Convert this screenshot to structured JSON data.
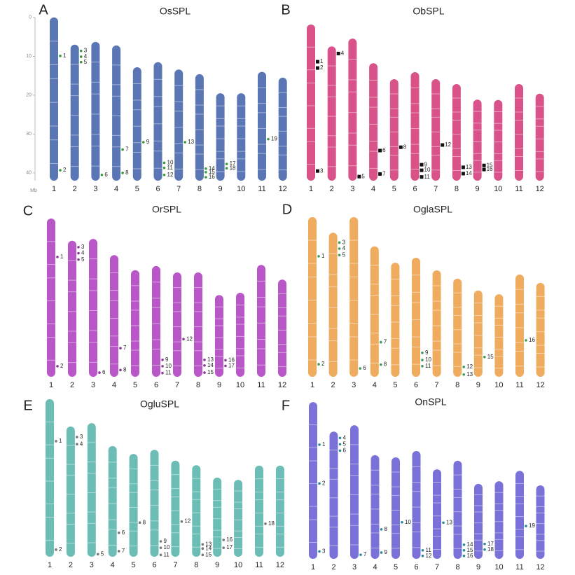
{
  "panels": [
    {
      "letter": "A",
      "title": "OsSPL",
      "color": "#5a76b5",
      "marker_color": "#3a9a3a",
      "marker": "dot",
      "axis": {
        "ticks": [
          0,
          10,
          20,
          30,
          40
        ],
        "unit": "Mb"
      },
      "chromosomes": [
        {
          "label": "1",
          "length": 42,
          "genes": [
            {
              "label": "1",
              "position": 9.9
            },
            {
              "label": "2",
              "position": 39.3
            }
          ]
        },
        {
          "label": "2",
          "length": 35,
          "genes": [
            {
              "label": "3",
              "position": 1.6
            },
            {
              "label": "4",
              "position": 3.1
            },
            {
              "label": "5",
              "position": 4.5
            }
          ]
        },
        {
          "label": "3",
          "length": 35.7,
          "genes": [
            {
              "label": "6",
              "position": 34.2
            }
          ]
        },
        {
          "label": "4",
          "length": 34.8,
          "genes": [
            {
              "label": "7",
              "position": 26.8
            },
            {
              "label": "8",
              "position": 32.8
            }
          ]
        },
        {
          "label": "5",
          "length": 29.2,
          "genes": [
            {
              "label": "9",
              "position": 19.3
            }
          ]
        },
        {
          "label": "6",
          "length": 30.5,
          "genes": [
            {
              "label": "10",
              "position": 25.9
            },
            {
              "label": "11",
              "position": 27.2
            },
            {
              "label": "12",
              "position": 29
            }
          ]
        },
        {
          "label": "7",
          "length": 28.6,
          "genes": [
            {
              "label": "13",
              "position": 18.7
            }
          ]
        },
        {
          "label": "8",
          "length": 27.4,
          "genes": [
            {
              "label": "14",
              "position": 24.3
            },
            {
              "label": "15",
              "position": 25.2
            },
            {
              "label": "16",
              "position": 26.5
            }
          ]
        },
        {
          "label": "9",
          "length": 22.5,
          "genes": [
            {
              "label": "17",
              "position": 18.2
            },
            {
              "label": "18",
              "position": 19.3
            }
          ]
        },
        {
          "label": "10",
          "length": 22.5,
          "genes": []
        },
        {
          "label": "11",
          "length": 28,
          "genes": [
            {
              "label": "19",
              "position": 17.3
            }
          ]
        },
        {
          "label": "12",
          "length": 26.5,
          "genes": []
        }
      ]
    },
    {
      "letter": "B",
      "title": "ObSPL",
      "color": "#d9538a",
      "marker_color": "#111111",
      "marker": "square",
      "chromosomes": [
        {
          "label": "1",
          "length": 42,
          "genes": [
            {
              "label": "1",
              "position": 10
            },
            {
              "label": "2",
              "position": 11.7
            },
            {
              "label": "3",
              "position": 39.4
            }
          ]
        },
        {
          "label": "2",
          "length": 36.1,
          "genes": [
            {
              "label": "4",
              "position": 1.9
            }
          ]
        },
        {
          "label": "3",
          "length": 38.2,
          "genes": [
            {
              "label": "5",
              "position": 37.1
            }
          ]
        },
        {
          "label": "4",
          "length": 31.6,
          "genes": [
            {
              "label": "6",
              "position": 23.5
            },
            {
              "label": "7",
              "position": 29.8
            }
          ]
        },
        {
          "label": "5",
          "length": 27.3,
          "genes": [
            {
              "label": "8",
              "position": 18.3
            }
          ]
        },
        {
          "label": "6",
          "length": 29.2,
          "genes": [
            {
              "label": "9",
              "position": 24.9
            },
            {
              "label": "10",
              "position": 26.4
            },
            {
              "label": "11",
              "position": 28.2
            }
          ]
        },
        {
          "label": "7",
          "length": 27.3,
          "genes": [
            {
              "label": "12",
              "position": 17.7
            }
          ]
        },
        {
          "label": "8",
          "length": 26,
          "genes": [
            {
              "label": "13",
              "position": 22.4
            },
            {
              "label": "14",
              "position": 24.1
            }
          ]
        },
        {
          "label": "9",
          "length": 21.8,
          "genes": [
            {
              "label": "15",
              "position": 17.7
            },
            {
              "label": "16",
              "position": 18.8
            }
          ]
        },
        {
          "label": "10",
          "length": 21.7,
          "genes": []
        },
        {
          "label": "11",
          "length": 26,
          "genes": []
        },
        {
          "label": "12",
          "length": 23.4,
          "genes": []
        }
      ]
    },
    {
      "letter": "C",
      "title": "OrSPL",
      "color": "#b957c8",
      "marker_color": "#8a3a96",
      "marker": "dot",
      "chromosomes": [
        {
          "label": "1",
          "length": 42,
          "genes": [
            {
              "label": "1",
              "position": 10.2
            },
            {
              "label": "2",
              "position": 39.2
            }
          ]
        },
        {
          "label": "2",
          "length": 36.1,
          "genes": [
            {
              "label": "3",
              "position": 1.7
            },
            {
              "label": "4",
              "position": 3.3
            },
            {
              "label": "5",
              "position": 5
            }
          ]
        },
        {
          "label": "3",
          "length": 36.6,
          "genes": [
            {
              "label": "6",
              "position": 35.5
            }
          ]
        },
        {
          "label": "4",
          "length": 32.3,
          "genes": [
            {
              "label": "7",
              "position": 24.7
            },
            {
              "label": "8",
              "position": 30.5
            }
          ]
        },
        {
          "label": "5",
          "length": 28.3,
          "genes": []
        },
        {
          "label": "6",
          "length": 29.4,
          "genes": [
            {
              "label": "9",
              "position": 24.9
            },
            {
              "label": "10",
              "position": 26.6
            },
            {
              "label": "11",
              "position": 28.4
            }
          ]
        },
        {
          "label": "7",
          "length": 27.7,
          "genes": [
            {
              "label": "12",
              "position": 17.7
            }
          ]
        },
        {
          "label": "8",
          "length": 27.7,
          "genes": [
            {
              "label": "13",
              "position": 23.2
            },
            {
              "label": "14",
              "position": 24.7
            },
            {
              "label": "15",
              "position": 26.6
            }
          ]
        },
        {
          "label": "9",
          "length": 21.7,
          "genes": [
            {
              "label": "16",
              "position": 17.3
            },
            {
              "label": "17",
              "position": 18.8
            }
          ]
        },
        {
          "label": "10",
          "length": 22.3,
          "genes": []
        },
        {
          "label": "11",
          "length": 29.7,
          "genes": []
        },
        {
          "label": "12",
          "length": 25.8,
          "genes": []
        }
      ]
    },
    {
      "letter": "D",
      "title": "OglaSPL",
      "color": "#f0ac5e",
      "marker_color": "#3a9a5a",
      "marker": "dot",
      "chromosomes": [
        {
          "label": "1",
          "length": 42,
          "genes": [
            {
              "label": "1",
              "position": 10.3
            },
            {
              "label": "2",
              "position": 38.7
            }
          ]
        },
        {
          "label": "2",
          "length": 37.9,
          "genes": [
            {
              "label": "3",
              "position": 2.6
            },
            {
              "label": "4",
              "position": 4.2
            },
            {
              "label": "5",
              "position": 5.9
            }
          ]
        },
        {
          "label": "3",
          "length": 42,
          "genes": [
            {
              "label": "6",
              "position": 39.8
            }
          ]
        },
        {
          "label": "4",
          "length": 34.3,
          "genes": [
            {
              "label": "7",
              "position": 25.2
            },
            {
              "label": "8",
              "position": 31.1
            }
          ]
        },
        {
          "label": "5",
          "length": 30,
          "genes": []
        },
        {
          "label": "6",
          "length": 31.3,
          "genes": [
            {
              "label": "9",
              "position": 25
            },
            {
              "label": "10",
              "position": 26.9
            },
            {
              "label": "11",
              "position": 28.5
            }
          ]
        },
        {
          "label": "7",
          "length": 28,
          "genes": []
        },
        {
          "label": "8",
          "length": 25.8,
          "genes": [
            {
              "label": "12",
              "position": 23.2
            },
            {
              "label": "13",
              "position": 25.2
            }
          ]
        },
        {
          "label": "9",
          "length": 22.7,
          "genes": [
            {
              "label": "15",
              "position": 17.5
            }
          ]
        },
        {
          "label": "10",
          "length": 21.7,
          "genes": []
        },
        {
          "label": "11",
          "length": 26.9,
          "genes": [
            {
              "label": "16",
              "position": 17.3
            }
          ]
        },
        {
          "label": "12",
          "length": 24.7,
          "genes": []
        }
      ]
    },
    {
      "letter": "E",
      "title": "OgluSPL",
      "color": "#6cbdb6",
      "marker_color": "#777777",
      "marker": "dot",
      "chromosomes": [
        {
          "label": "1",
          "length": 42,
          "genes": [
            {
              "label": "1",
              "position": 11.2
            },
            {
              "label": "2",
              "position": 40.1
            }
          ]
        },
        {
          "label": "2",
          "length": 34.7,
          "genes": [
            {
              "label": "3",
              "position": 2.8
            },
            {
              "label": "4",
              "position": 4.7
            }
          ]
        },
        {
          "label": "3",
          "length": 35.6,
          "genes": [
            {
              "label": "5",
              "position": 34.9
            }
          ]
        },
        {
          "label": "4",
          "length": 29.5,
          "genes": [
            {
              "label": "6",
              "position": 23.1
            },
            {
              "label": "7",
              "position": 28
            }
          ]
        },
        {
          "label": "5",
          "length": 27.4,
          "genes": [
            {
              "label": "8",
              "position": 18.3
            }
          ]
        },
        {
          "label": "6",
          "length": 28.5,
          "genes": [
            {
              "label": "9",
              "position": 24.4
            },
            {
              "label": "10",
              "position": 26.1
            },
            {
              "label": "11",
              "position": 28
            }
          ]
        },
        {
          "label": "7",
          "length": 25.6,
          "genes": [
            {
              "label": "12",
              "position": 16.2
            }
          ]
        },
        {
          "label": "8",
          "length": 24.4,
          "genes": [
            {
              "label": "13",
              "position": 21.1
            },
            {
              "label": "14",
              "position": 22.2
            },
            {
              "label": "15",
              "position": 23.9
            }
          ]
        },
        {
          "label": "9",
          "length": 21.1,
          "genes": [
            {
              "label": "16",
              "position": 16.6
            },
            {
              "label": "17",
              "position": 18.7
            }
          ]
        },
        {
          "label": "10",
          "length": 20.5,
          "genes": []
        },
        {
          "label": "11",
          "length": 24.3,
          "genes": [
            {
              "label": "18",
              "position": 15.5
            }
          ]
        },
        {
          "label": "12",
          "length": 24.3,
          "genes": []
        }
      ]
    },
    {
      "letter": "F",
      "title": "OnSPL",
      "color": "#7a72d8",
      "marker_color": "#2a8a9a",
      "marker": "dot",
      "chromosomes": [
        {
          "label": "1",
          "length": 42,
          "genes": [
            {
              "label": "1",
              "position": 11.4
            },
            {
              "label": "2",
              "position": 21.8
            },
            {
              "label": "3",
              "position": 40
            }
          ]
        },
        {
          "label": "2",
          "length": 34.1,
          "genes": [
            {
              "label": "4",
              "position": 1.7
            },
            {
              "label": "5",
              "position": 3.4
            },
            {
              "label": "6",
              "position": 5.1
            }
          ]
        },
        {
          "label": "3",
          "length": 35.8,
          "genes": [
            {
              "label": "7",
              "position": 34.7
            }
          ]
        },
        {
          "label": "4",
          "length": 27.8,
          "genes": [
            {
              "label": "8",
              "position": 19.9
            },
            {
              "label": "9",
              "position": 26.1
            }
          ]
        },
        {
          "label": "5",
          "length": 27.2,
          "genes": [
            {
              "label": "10",
              "position": 17.4
            }
          ]
        },
        {
          "label": "6",
          "length": 28.9,
          "genes": [
            {
              "label": "11",
              "position": 26.6
            },
            {
              "label": "12",
              "position": 28.1
            }
          ]
        },
        {
          "label": "7",
          "length": 24,
          "genes": [
            {
              "label": "13",
              "position": 14.3
            }
          ]
        },
        {
          "label": "8",
          "length": 26.3,
          "genes": [
            {
              "label": "14",
              "position": 22.5
            },
            {
              "label": "15",
              "position": 24
            },
            {
              "label": "16",
              "position": 25.5
            }
          ]
        },
        {
          "label": "9",
          "length": 20.1,
          "genes": [
            {
              "label": "17",
              "position": 16.1
            },
            {
              "label": "18",
              "position": 17.6
            }
          ]
        },
        {
          "label": "10",
          "length": 20.8,
          "genes": []
        },
        {
          "label": "11",
          "length": 23.6,
          "genes": [
            {
              "label": "19",
              "position": 14.8
            }
          ]
        },
        {
          "label": "12",
          "length": 19.7,
          "genes": []
        }
      ]
    }
  ]
}
